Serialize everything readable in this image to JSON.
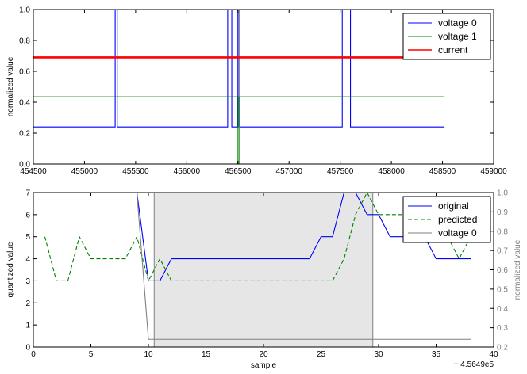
{
  "chart_data": [
    {
      "type": "line",
      "xlim": [
        454500,
        459000
      ],
      "ylim": [
        0,
        1.0
      ],
      "xticks": [
        "454500",
        "455000",
        "455500",
        "456000",
        "456500",
        "457000",
        "457500",
        "458000",
        "458500",
        "459000"
      ],
      "yticks": [
        "0.0",
        "0.2",
        "0.4",
        "0.6",
        "0.8",
        "1.0"
      ],
      "xlabel": "",
      "ylabel": "normalized value",
      "legend_position": "top-right",
      "series": [
        {
          "name": "voltage 0",
          "color": "#0000ff",
          "x": [
            454500,
            455300,
            455300,
            455320,
            455320,
            455440,
            455440,
            456400,
            456400,
            456440,
            456440,
            456500,
            456500,
            456520,
            456520,
            457520,
            457520,
            457600,
            457600,
            458520
          ],
          "y": [
            0.24,
            0.24,
            1.0,
            1.0,
            0.24,
            0.24,
            0.24,
            0.24,
            1.0,
            1.0,
            0.24,
            0.24,
            1.0,
            1.0,
            0.24,
            0.24,
            1.0,
            1.0,
            0.24,
            0.24
          ]
        },
        {
          "name": "voltage 1",
          "color": "#008000",
          "x": [
            454500,
            456495,
            456495,
            456510,
            456510,
            458520
          ],
          "y": [
            0.435,
            0.435,
            0.0,
            0.0,
            0.435,
            0.435
          ]
        },
        {
          "name": "current",
          "color": "#ff0000",
          "x": [
            454500,
            458520
          ],
          "y": [
            0.69,
            0.69
          ]
        }
      ],
      "vertical_markers": [
        {
          "x": 456490,
          "color": "#808080"
        },
        {
          "x": 456510,
          "color": "#808080"
        }
      ]
    },
    {
      "type": "line",
      "xlim": [
        0,
        40
      ],
      "ylim": [
        0,
        7
      ],
      "y2lim": [
        0.2,
        1.0
      ],
      "xticks": [
        "0",
        "5",
        "10",
        "15",
        "20",
        "25",
        "30",
        "35",
        "40"
      ],
      "yticks": [
        "0",
        "1",
        "2",
        "3",
        "4",
        "5",
        "6",
        "7"
      ],
      "y2ticks": [
        "0.2",
        "0.3",
        "0.4",
        "0.5",
        "0.6",
        "0.7",
        "0.8",
        "0.9",
        "1.0"
      ],
      "xlabel": "sample",
      "ylabel": "quantized value",
      "y2label": "normalized value",
      "offset_label": "+ 4.5649e5",
      "legend_position": "top-right",
      "shaded_region": {
        "x0": 10.5,
        "x1": 29.5,
        "color": "#e6e6e6"
      },
      "series": [
        {
          "name": "original",
          "color": "#0000ff",
          "dash": "solid",
          "axis": "left",
          "x": [
            9,
            10,
            10.5,
            11,
            12,
            13,
            14,
            15,
            16,
            17,
            18,
            19,
            20,
            21,
            22,
            23,
            24,
            25,
            26,
            27,
            28,
            29,
            30,
            31,
            32,
            33,
            34,
            35,
            36,
            37,
            38
          ],
          "y": [
            7,
            3,
            3,
            3,
            4,
            4,
            4,
            4,
            4,
            4,
            4,
            4,
            4,
            4,
            4,
            4,
            4,
            5,
            5,
            7,
            7,
            6,
            6,
            5,
            5,
            5,
            5,
            4,
            4,
            4,
            4
          ]
        },
        {
          "name": "predicted",
          "color": "#008000",
          "dash": "dashed",
          "axis": "left",
          "x": [
            1,
            2,
            3,
            4,
            5,
            6,
            7,
            8,
            9,
            10,
            11,
            12,
            13,
            14,
            15,
            16,
            17,
            18,
            19,
            20,
            21,
            22,
            23,
            24,
            25,
            26,
            27,
            28,
            29,
            30,
            31,
            32,
            33,
            34,
            35,
            36,
            37,
            38
          ],
          "y": [
            5,
            3,
            3,
            5,
            4,
            4,
            4,
            4,
            5,
            3,
            4,
            3,
            3,
            3,
            3,
            3,
            3,
            3,
            3,
            3,
            3,
            3,
            3,
            3,
            3,
            3,
            4,
            6,
            7,
            6,
            6,
            6,
            6,
            6,
            5,
            5,
            4,
            5
          ]
        },
        {
          "name": "voltage 0",
          "color": "#808080",
          "dash": "solid",
          "axis": "right",
          "x": [
            9,
            10,
            38
          ],
          "y": [
            1.0,
            0.24,
            0.24
          ]
        }
      ],
      "vertical_markers": [
        {
          "x": 10.5,
          "color": "#808080"
        },
        {
          "x": 29.5,
          "color": "#808080"
        }
      ]
    }
  ]
}
